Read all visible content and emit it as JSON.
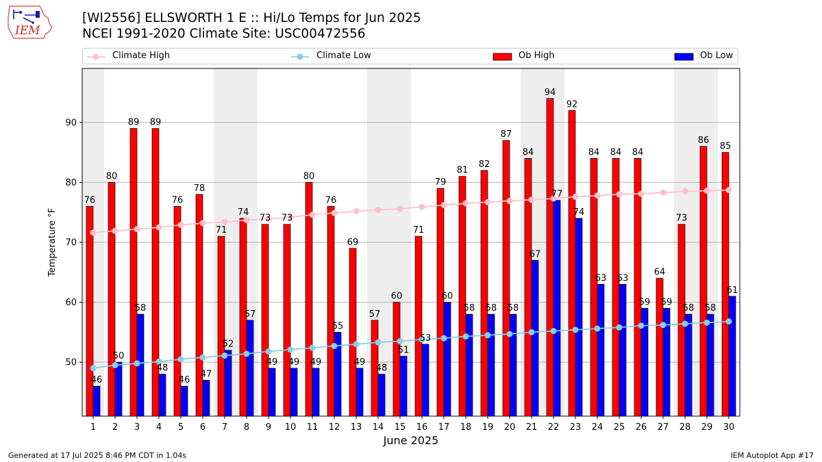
{
  "header": {
    "title_line1": "[WI2556] ELLSWORTH 1 E :: Hi/Lo Temps for Jun 2025",
    "title_line2": "NCEI 1991-2020 Climate Site: USC00472556",
    "logo_text": "IEM"
  },
  "footer": {
    "generated": "Generated at 17 Jul 2025 8:46 PM CDT in 1.04s",
    "app": "IEM Autoplot App #17"
  },
  "colors": {
    "ob_high": "#ff0000",
    "ob_low": "#0000ff",
    "climate_high": "#ffc0cb",
    "climate_low": "#87ceeb",
    "weekend_shade": "#eeeeee",
    "grid": "#b0b0b0"
  },
  "chart_data": {
    "type": "bar",
    "xlabel": "June 2025",
    "ylabel": "Temperature °F",
    "ylim": [
      41,
      99
    ],
    "yticks": [
      50,
      60,
      70,
      80,
      90
    ],
    "grid": "horizontal",
    "legend_placement": "top",
    "categories": [
      "1",
      "2",
      "3",
      "4",
      "5",
      "6",
      "7",
      "8",
      "9",
      "10",
      "11",
      "12",
      "13",
      "14",
      "15",
      "16",
      "17",
      "18",
      "19",
      "20",
      "21",
      "22",
      "23",
      "24",
      "25",
      "26",
      "27",
      "28",
      "29",
      "30"
    ],
    "shaded_days": [
      1,
      7,
      8,
      14,
      15,
      21,
      22,
      28,
      29
    ],
    "series": [
      {
        "name": "Ob High",
        "kind": "bar",
        "values": [
          76,
          80,
          89,
          89,
          76,
          78,
          71,
          74,
          73,
          73,
          80,
          76,
          69,
          57,
          60,
          71,
          79,
          81,
          82,
          87,
          84,
          94,
          92,
          84,
          84,
          84,
          64,
          73,
          86,
          85
        ]
      },
      {
        "name": "Ob Low",
        "kind": "bar",
        "values": [
          46,
          50,
          58,
          48,
          46,
          47,
          52,
          57,
          49,
          49,
          49,
          55,
          49,
          48,
          51,
          53,
          60,
          58,
          58,
          58,
          67,
          77,
          74,
          63,
          63,
          59,
          59,
          58,
          58,
          61
        ]
      },
      {
        "name": "Climate High",
        "kind": "line",
        "values": [
          71.6,
          71.9,
          72.2,
          72.5,
          72.9,
          73.2,
          73.4,
          73.7,
          73.9,
          74.2,
          74.6,
          74.9,
          75.2,
          75.4,
          75.6,
          75.9,
          76.2,
          76.5,
          76.7,
          76.9,
          77.1,
          77.3,
          77.6,
          77.8,
          78.0,
          78.1,
          78.3,
          78.5,
          78.6,
          78.7
        ]
      },
      {
        "name": "Climate Low",
        "kind": "line",
        "values": [
          49.0,
          49.5,
          49.8,
          50.1,
          50.5,
          50.8,
          51.1,
          51.4,
          51.8,
          52.1,
          52.4,
          52.7,
          53.0,
          53.3,
          53.5,
          53.8,
          54.0,
          54.3,
          54.5,
          54.7,
          55.0,
          55.2,
          55.4,
          55.6,
          55.8,
          56.1,
          56.2,
          56.4,
          56.6,
          56.8
        ]
      }
    ]
  }
}
